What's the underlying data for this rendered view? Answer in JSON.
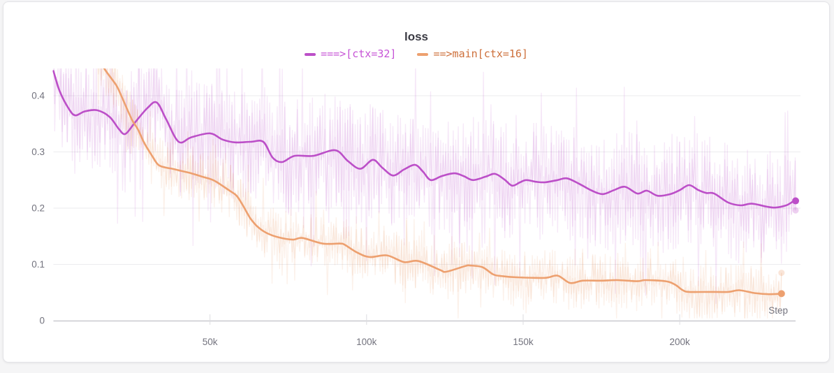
{
  "panel": {
    "background": "#ffffff",
    "page_background": "#f5f5f6",
    "border_color": "#e4e4e8"
  },
  "chart_data": {
    "type": "line",
    "title": "loss",
    "xlabel": "Step",
    "ylabel": "",
    "xlim": [
      0,
      237000
    ],
    "ylim": [
      0,
      0.448
    ],
    "grid": "horizontal",
    "legend_position": "top-center",
    "xticks": [
      {
        "value": 50000,
        "label": "50k"
      },
      {
        "value": 100000,
        "label": "100k"
      },
      {
        "value": 150000,
        "label": "150k"
      },
      {
        "value": 200000,
        "label": "200k"
      }
    ],
    "yticks": [
      {
        "value": 0,
        "label": "0"
      },
      {
        "value": 0.1,
        "label": "0.1"
      },
      {
        "value": 0.2,
        "label": "0.2"
      },
      {
        "value": 0.3,
        "label": "0.3"
      },
      {
        "value": 0.4,
        "label": "0.4"
      }
    ],
    "axis_text_color": "#73737e",
    "series": [
      {
        "name": "===>[ctx=32]",
        "color": "#bc4fc8",
        "label_color": "#c653d6",
        "smoothed": true,
        "points": [
          [
            0,
            0.444
          ],
          [
            2000,
            0.408
          ],
          [
            5000,
            0.376
          ],
          [
            7000,
            0.365
          ],
          [
            10000,
            0.372
          ],
          [
            14000,
            0.374
          ],
          [
            18000,
            0.362
          ],
          [
            21000,
            0.34
          ],
          [
            23000,
            0.332
          ],
          [
            26000,
            0.352
          ],
          [
            30000,
            0.378
          ],
          [
            33000,
            0.388
          ],
          [
            36000,
            0.358
          ],
          [
            40000,
            0.318
          ],
          [
            44000,
            0.326
          ],
          [
            50000,
            0.333
          ],
          [
            54000,
            0.322
          ],
          [
            58000,
            0.317
          ],
          [
            63000,
            0.318
          ],
          [
            67000,
            0.318
          ],
          [
            70000,
            0.29
          ],
          [
            73000,
            0.282
          ],
          [
            77000,
            0.293
          ],
          [
            83000,
            0.293
          ],
          [
            90000,
            0.303
          ],
          [
            94000,
            0.284
          ],
          [
            98000,
            0.27
          ],
          [
            102000,
            0.286
          ],
          [
            105000,
            0.272
          ],
          [
            108500,
            0.258
          ],
          [
            112000,
            0.269
          ],
          [
            115500,
            0.277
          ],
          [
            118000,
            0.265
          ],
          [
            120500,
            0.25
          ],
          [
            124000,
            0.257
          ],
          [
            128000,
            0.262
          ],
          [
            131000,
            0.257
          ],
          [
            134000,
            0.25
          ],
          [
            138000,
            0.256
          ],
          [
            141000,
            0.261
          ],
          [
            144000,
            0.251
          ],
          [
            146500,
            0.24
          ],
          [
            149000,
            0.246
          ],
          [
            151000,
            0.25
          ],
          [
            154000,
            0.247
          ],
          [
            157000,
            0.246
          ],
          [
            161000,
            0.25
          ],
          [
            164000,
            0.253
          ],
          [
            168000,
            0.243
          ],
          [
            172000,
            0.231
          ],
          [
            175500,
            0.225
          ],
          [
            179000,
            0.232
          ],
          [
            182500,
            0.238
          ],
          [
            186500,
            0.226
          ],
          [
            189500,
            0.231
          ],
          [
            193000,
            0.222
          ],
          [
            197000,
            0.225
          ],
          [
            200000,
            0.232
          ],
          [
            203000,
            0.241
          ],
          [
            206000,
            0.232
          ],
          [
            208500,
            0.227
          ],
          [
            211000,
            0.226
          ],
          [
            215500,
            0.21
          ],
          [
            219500,
            0.205
          ],
          [
            223000,
            0.208
          ],
          [
            227500,
            0.203
          ],
          [
            230500,
            0.201
          ],
          [
            234000,
            0.205
          ],
          [
            236000,
            0.211
          ],
          [
            237000,
            0.213
          ]
        ],
        "end_dot": {
          "step": 237000,
          "value": 0.213
        },
        "raw_end_dot": {
          "step": 237000,
          "value": 0.196
        },
        "noise": {
          "amplitude": 0.105,
          "spike_chance": 0.12,
          "spike_scale": 1.9,
          "opacity": 0.13,
          "seed": 7
        }
      },
      {
        "name": "==>main[ctx=16]",
        "color": "#eda06f",
        "label_color": "#cd6f3a",
        "smoothed": true,
        "points": [
          [
            14000,
            0.47
          ],
          [
            16500,
            0.446
          ],
          [
            20000,
            0.419
          ],
          [
            21500,
            0.402
          ],
          [
            25000,
            0.358
          ],
          [
            27000,
            0.34
          ],
          [
            29000,
            0.316
          ],
          [
            31500,
            0.293
          ],
          [
            33500,
            0.277
          ],
          [
            36000,
            0.272
          ],
          [
            38000,
            0.27
          ],
          [
            41000,
            0.266
          ],
          [
            44000,
            0.262
          ],
          [
            47500,
            0.256
          ],
          [
            50000,
            0.252
          ],
          [
            52000,
            0.247
          ],
          [
            56000,
            0.232
          ],
          [
            58500,
            0.222
          ],
          [
            60500,
            0.205
          ],
          [
            62000,
            0.19
          ],
          [
            63000,
            0.181
          ],
          [
            65000,
            0.168
          ],
          [
            68000,
            0.156
          ],
          [
            72000,
            0.148
          ],
          [
            76500,
            0.144
          ],
          [
            79500,
            0.147
          ],
          [
            86000,
            0.137
          ],
          [
            91500,
            0.137
          ],
          [
            93000,
            0.135
          ],
          [
            97000,
            0.121
          ],
          [
            101000,
            0.113
          ],
          [
            106500,
            0.116
          ],
          [
            112000,
            0.104
          ],
          [
            116500,
            0.106
          ],
          [
            123500,
            0.09
          ],
          [
            125500,
            0.087
          ],
          [
            131500,
            0.097
          ],
          [
            133000,
            0.098
          ],
          [
            137000,
            0.095
          ],
          [
            140500,
            0.082
          ],
          [
            143500,
            0.079
          ],
          [
            148000,
            0.077
          ],
          [
            157000,
            0.076
          ],
          [
            161000,
            0.08
          ],
          [
            165000,
            0.067
          ],
          [
            169000,
            0.071
          ],
          [
            175000,
            0.071
          ],
          [
            180000,
            0.072
          ],
          [
            186500,
            0.07
          ],
          [
            189000,
            0.072
          ],
          [
            195500,
            0.07
          ],
          [
            198500,
            0.064
          ],
          [
            201000,
            0.054
          ],
          [
            203000,
            0.051
          ],
          [
            209000,
            0.051
          ],
          [
            215500,
            0.051
          ],
          [
            219000,
            0.054
          ],
          [
            224000,
            0.049
          ],
          [
            228500,
            0.047
          ],
          [
            232500,
            0.048
          ]
        ],
        "end_dot": {
          "step": 232500,
          "value": 0.048
        },
        "raw_end_dot": {
          "step": 232500,
          "value": 0.085
        },
        "noise": {
          "amplitude": 0.05,
          "spike_chance": 0.12,
          "spike_scale": 1.9,
          "opacity": 0.15,
          "seed": 13
        }
      }
    ]
  }
}
